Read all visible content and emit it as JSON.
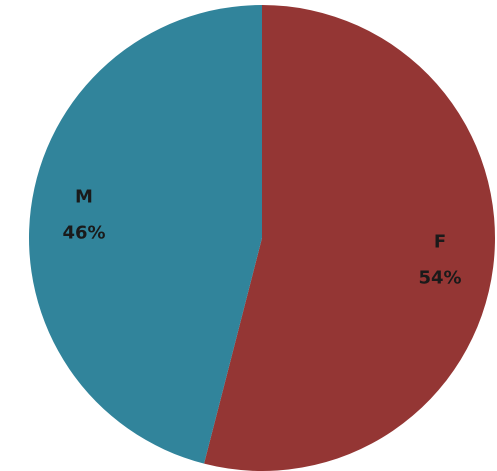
{
  "chart_data": {
    "type": "pie",
    "categories": [
      "F",
      "M"
    ],
    "values": [
      54,
      46
    ],
    "value_labels": [
      "54%",
      "46%"
    ],
    "colors": [
      "#943634",
      "#31849b"
    ]
  }
}
